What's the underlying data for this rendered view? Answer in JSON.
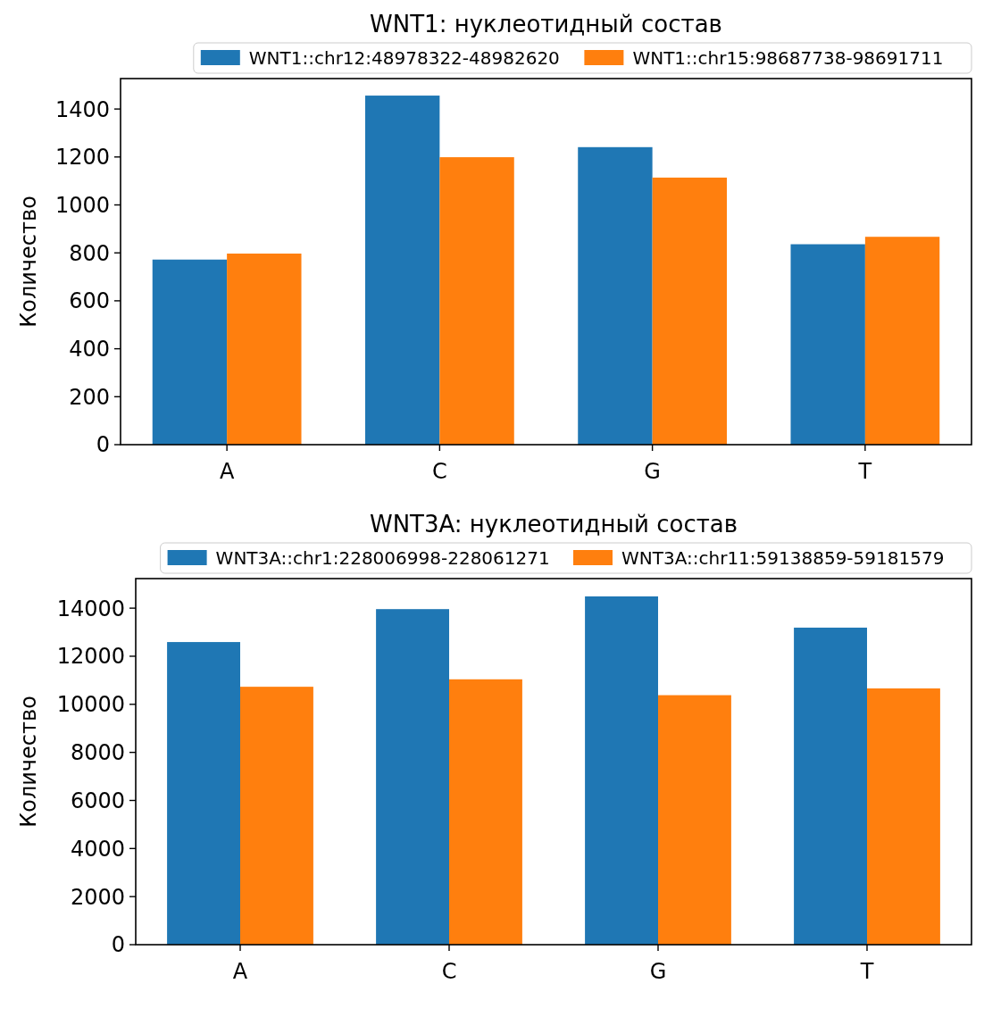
{
  "chart_data": [
    {
      "type": "bar",
      "title": "WNT1: нуклеотидный состав",
      "ylabel": "Количество",
      "categories": [
        "A",
        "C",
        "G",
        "T"
      ],
      "series": [
        {
          "name": "WNT1::chr12:48978322-48982620",
          "color": "#1f77b4",
          "values": [
            772,
            1456,
            1241,
            836
          ]
        },
        {
          "name": "WNT1::chr15:98687738-98691711",
          "color": "#ff7f0e",
          "values": [
            797,
            1199,
            1114,
            867
          ]
        }
      ],
      "ylim": [
        0,
        1527
      ],
      "yticks": [
        0,
        200,
        400,
        600,
        800,
        1000,
        1200,
        1400
      ],
      "grid": false,
      "legend": "top right"
    },
    {
      "type": "bar",
      "title": "WNT3A: нуклеотидный состав",
      "ylabel": "Количество",
      "categories": [
        "A",
        "C",
        "G",
        "T"
      ],
      "series": [
        {
          "name": "WNT3A::chr1:228006998-228061271",
          "color": "#1f77b4",
          "values": [
            12590,
            13960,
            14490,
            13190
          ]
        },
        {
          "name": "WNT3A::chr11:59138859-59181579",
          "color": "#ff7f0e",
          "values": [
            10730,
            11040,
            10380,
            10660
          ]
        }
      ],
      "ylim": [
        0,
        15230
      ],
      "yticks": [
        0,
        2000,
        4000,
        6000,
        8000,
        10000,
        12000,
        14000
      ],
      "grid": false,
      "legend": "top right"
    }
  ]
}
